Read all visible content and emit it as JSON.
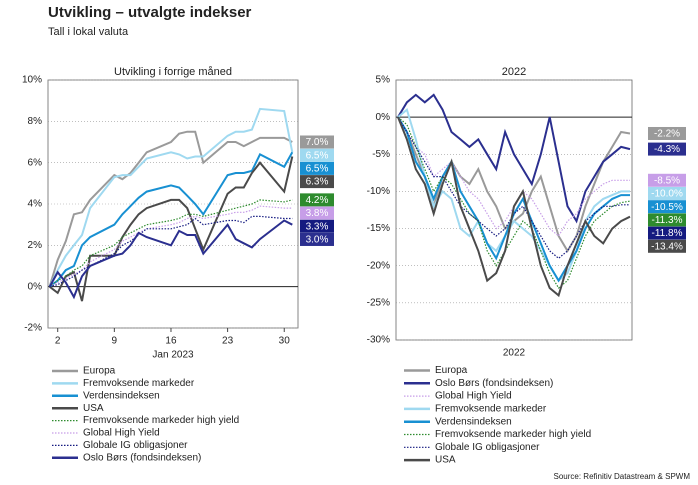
{
  "header": {
    "title": "Utvikling – utvalgte indekser",
    "subtitle": "Tall i lokal valuta"
  },
  "source": "Source: Refinitiv Datastream & SPWM",
  "chart_data": [
    {
      "type": "line",
      "title": "Utvikling i forrige måned",
      "xlabel": "Jan 2023",
      "x": [
        1,
        2,
        3,
        4,
        5,
        6,
        9,
        10,
        11,
        12,
        13,
        16,
        17,
        18,
        19,
        20,
        23,
        24,
        25,
        26,
        27,
        30,
        31
      ],
      "xlim": [
        0.8,
        31.7
      ],
      "xticks": [
        2,
        9,
        16,
        23,
        30
      ],
      "ylim": [
        -2,
        10
      ],
      "yticks": [
        {
          "value": -2,
          "label": "-2%"
        },
        {
          "value": 0,
          "label": "0%"
        },
        {
          "value": 2,
          "label": "2%"
        },
        {
          "value": 4,
          "label": "4%"
        },
        {
          "value": 6,
          "label": "6%"
        },
        {
          "value": 8,
          "label": "8%"
        },
        {
          "value": 10,
          "label": "10%"
        }
      ],
      "grid": true,
      "series": [
        {
          "name": "Europa",
          "color": "#9a9a9a",
          "style": "solid",
          "values": [
            0,
            1.3,
            2.2,
            3.5,
            3.6,
            4.2,
            5.4,
            5.2,
            5.5,
            6.0,
            6.5,
            7.0,
            7.4,
            7.5,
            7.5,
            6.0,
            7.0,
            7.0,
            6.8,
            7.0,
            7.2,
            7.2,
            7.0
          ],
          "value_labels": [
            null,
            null,
            null,
            null,
            null,
            null,
            null,
            null,
            null,
            null,
            null,
            null,
            null,
            null,
            null,
            null,
            null,
            null,
            null,
            null,
            null,
            null,
            "7.0%"
          ]
        },
        {
          "name": "Fremvoksende markeder",
          "color": "#9fd9f0",
          "style": "solid",
          "values": [
            0,
            0.8,
            1.5,
            2.0,
            2.5,
            3.8,
            5.3,
            5.4,
            5.4,
            5.8,
            6.2,
            6.5,
            6.4,
            6.2,
            6.3,
            6.3,
            7.3,
            7.5,
            7.5,
            7.6,
            8.6,
            8.5,
            6.5
          ],
          "value_labels": [
            null,
            null,
            null,
            null,
            null,
            null,
            null,
            null,
            null,
            null,
            null,
            null,
            null,
            null,
            null,
            null,
            null,
            null,
            null,
            null,
            null,
            null,
            "6.5%"
          ]
        },
        {
          "name": "Verdensindeksen",
          "color": "#1890d2",
          "style": "solid",
          "values": [
            0,
            0.3,
            0.8,
            1.0,
            2.0,
            2.4,
            3.0,
            3.5,
            3.9,
            4.3,
            4.6,
            4.9,
            4.8,
            4.4,
            4.0,
            3.5,
            5.4,
            5.5,
            5.5,
            5.6,
            6.4,
            5.8,
            6.5
          ],
          "value_labels": [
            null,
            null,
            null,
            null,
            null,
            null,
            null,
            null,
            null,
            null,
            null,
            null,
            null,
            null,
            null,
            null,
            null,
            null,
            null,
            null,
            null,
            null,
            "6.5%"
          ]
        },
        {
          "name": "USA",
          "color": "#4a4a4a",
          "style": "solid",
          "values": [
            0,
            -0.3,
            0.5,
            0.7,
            -0.7,
            1.5,
            1.5,
            2.4,
            3.0,
            3.5,
            3.8,
            4.2,
            4.2,
            3.8,
            2.8,
            1.8,
            4.5,
            4.8,
            4.8,
            5.5,
            6.0,
            4.6,
            6.3
          ],
          "value_labels": [
            null,
            null,
            null,
            null,
            null,
            null,
            null,
            null,
            null,
            null,
            null,
            null,
            null,
            null,
            null,
            null,
            null,
            null,
            null,
            null,
            null,
            null,
            "6.3%"
          ]
        },
        {
          "name": "Fremvoksende markeder high yield",
          "color": "#2e8b2e",
          "style": "dotted",
          "values": [
            0,
            0.3,
            0.5,
            0.8,
            1.0,
            1.5,
            2.0,
            2.4,
            2.6,
            2.8,
            3.0,
            3.2,
            3.3,
            3.5,
            3.5,
            3.4,
            3.7,
            3.8,
            3.9,
            4.0,
            4.2,
            4.1,
            4.2
          ],
          "value_labels": [
            null,
            null,
            null,
            null,
            null,
            null,
            null,
            null,
            null,
            null,
            null,
            null,
            null,
            null,
            null,
            null,
            null,
            null,
            null,
            null,
            null,
            null,
            "4.2%"
          ]
        },
        {
          "name": "Global High Yield",
          "color": "#c79ee8",
          "style": "dotted",
          "values": [
            0,
            0.2,
            0.4,
            0.6,
            0.8,
            1.2,
            1.8,
            2.2,
            2.4,
            2.6,
            2.8,
            3.0,
            3.1,
            3.3,
            3.4,
            3.3,
            3.5,
            3.6,
            3.6,
            3.7,
            3.9,
            3.8,
            3.8
          ],
          "value_labels": [
            null,
            null,
            null,
            null,
            null,
            null,
            null,
            null,
            null,
            null,
            null,
            null,
            null,
            null,
            null,
            null,
            null,
            null,
            null,
            null,
            null,
            null,
            "3.8%"
          ]
        },
        {
          "name": "Globale IG obligasjoner",
          "color": "#141a80",
          "style": "dotted",
          "values": [
            0,
            0.1,
            0.3,
            0.5,
            0.8,
            1.0,
            1.6,
            2.0,
            2.2,
            2.5,
            2.8,
            2.8,
            2.9,
            3.0,
            3.3,
            3.0,
            3.2,
            3.2,
            3.1,
            3.4,
            3.4,
            3.3,
            3.3
          ],
          "value_labels": [
            null,
            null,
            null,
            null,
            null,
            null,
            null,
            null,
            null,
            null,
            null,
            null,
            null,
            null,
            null,
            null,
            null,
            null,
            null,
            null,
            null,
            null,
            "3.3%"
          ]
        },
        {
          "name": "Oslo Børs (fondsindeksen)",
          "color": "#2b2f8f",
          "style": "solid",
          "values": [
            0,
            0.7,
            0.2,
            -0.5,
            0.5,
            1.0,
            1.5,
            1.6,
            2.0,
            2.6,
            2.4,
            2.0,
            2.7,
            2.5,
            2.5,
            1.6,
            3.0,
            2.3,
            2.1,
            1.9,
            2.3,
            3.2,
            3.0
          ],
          "value_labels": [
            null,
            null,
            null,
            null,
            null,
            null,
            null,
            null,
            null,
            null,
            null,
            null,
            null,
            null,
            null,
            null,
            null,
            null,
            null,
            null,
            null,
            null,
            "3.0%"
          ]
        }
      ]
    },
    {
      "type": "line",
      "title": "2022",
      "xlabel": "2022",
      "categories": [
        null,
        null,
        null,
        null,
        null,
        null,
        null,
        null,
        null,
        null,
        null,
        null,
        null,
        null,
        null,
        null,
        null,
        null,
        null,
        null,
        null,
        null,
        null,
        null,
        null,
        null,
        null
      ],
      "ylim": [
        -30,
        5
      ],
      "yticks": [
        {
          "value": -30,
          "label": "-30%"
        },
        {
          "value": -25,
          "label": "-25%"
        },
        {
          "value": -20,
          "label": "-20%"
        },
        {
          "value": -15,
          "label": "-15%"
        },
        {
          "value": -10,
          "label": "-10%"
        },
        {
          "value": -5,
          "label": "-5%"
        },
        {
          "value": 0,
          "label": "0%"
        },
        {
          "value": 5,
          "label": "5%"
        }
      ],
      "grid": true,
      "series": [
        {
          "name": "Europa",
          "color": "#9a9a9a",
          "style": "solid",
          "values": [
            0,
            -2,
            -5,
            -8,
            -12,
            -8,
            -6,
            -8,
            -9,
            -7,
            -10,
            -12,
            -15,
            -14,
            -13,
            -10,
            -8,
            -12,
            -16,
            -18,
            -16,
            -12,
            -9,
            -6,
            -4,
            -2,
            -2.2
          ],
          "value_labels": [
            null,
            null,
            null,
            null,
            null,
            null,
            null,
            null,
            null,
            null,
            null,
            null,
            null,
            null,
            null,
            null,
            null,
            null,
            null,
            null,
            null,
            null,
            null,
            null,
            null,
            null,
            "-2.2%"
          ]
        },
        {
          "name": "Oslo Børs (fondsindeksen)",
          "color": "#2b2f8f",
          "style": "solid",
          "values": [
            0,
            2,
            3,
            2,
            3,
            1,
            -2,
            -3,
            -4,
            -3,
            -5,
            -7,
            -2,
            -5,
            -7,
            -9,
            -5,
            0,
            -6,
            -12,
            -14,
            -10,
            -8,
            -6,
            -5,
            -4,
            -4.3
          ],
          "value_labels": [
            null,
            null,
            null,
            null,
            null,
            null,
            null,
            null,
            null,
            null,
            null,
            null,
            null,
            null,
            null,
            null,
            null,
            null,
            null,
            null,
            null,
            null,
            null,
            null,
            null,
            null,
            "-4.3%"
          ]
        },
        {
          "name": "Global High Yield",
          "color": "#c79ee8",
          "style": "dotted",
          "values": [
            0,
            -2,
            -4,
            -5,
            -8,
            -7,
            -6,
            -8,
            -10,
            -11,
            -13,
            -15,
            -14,
            -12,
            -10,
            -11,
            -13,
            -15,
            -16,
            -14,
            -13,
            -11,
            -10,
            -9,
            -8.5,
            -8.5,
            -8.5
          ],
          "value_labels": [
            null,
            null,
            null,
            null,
            null,
            null,
            null,
            null,
            null,
            null,
            null,
            null,
            null,
            null,
            null,
            null,
            null,
            null,
            null,
            null,
            null,
            null,
            null,
            null,
            null,
            null,
            "-8.5%"
          ]
        },
        {
          "name": "Fremvoksende markeder",
          "color": "#9fd9f0",
          "style": "solid",
          "values": [
            0,
            1,
            -3,
            -8,
            -12,
            -10,
            -11,
            -15,
            -16,
            -14,
            -17,
            -18,
            -16,
            -14,
            -15,
            -16,
            -18,
            -20,
            -22,
            -21,
            -18,
            -14,
            -12,
            -11,
            -10.5,
            -10,
            -10.0
          ],
          "value_labels": [
            null,
            null,
            null,
            null,
            null,
            null,
            null,
            null,
            null,
            null,
            null,
            null,
            null,
            null,
            null,
            null,
            null,
            null,
            null,
            null,
            null,
            null,
            null,
            null,
            null,
            null,
            "-10.0%"
          ]
        },
        {
          "name": "Verdensindeksen",
          "color": "#1890d2",
          "style": "solid",
          "values": [
            0,
            -2,
            -6,
            -8,
            -11,
            -8,
            -6,
            -10,
            -12,
            -14,
            -17,
            -19,
            -16,
            -13,
            -11,
            -14,
            -17,
            -20,
            -22,
            -20,
            -18,
            -15,
            -13,
            -12,
            -11,
            -10.5,
            -10.5
          ],
          "value_labels": [
            null,
            null,
            null,
            null,
            null,
            null,
            null,
            null,
            null,
            null,
            null,
            null,
            null,
            null,
            null,
            null,
            null,
            null,
            null,
            null,
            null,
            null,
            null,
            null,
            null,
            null,
            "-10.5%"
          ]
        },
        {
          "name": "Fremvoksende markeder high yield",
          "color": "#2e8b2e",
          "style": "dotted",
          "values": [
            0,
            -1,
            -4,
            -7,
            -10,
            -8,
            -9,
            -11,
            -13,
            -14,
            -18,
            -20,
            -18,
            -16,
            -14,
            -15,
            -18,
            -21,
            -23,
            -22,
            -19,
            -16,
            -14,
            -13,
            -12,
            -11.5,
            -11.3
          ],
          "value_labels": [
            null,
            null,
            null,
            null,
            null,
            null,
            null,
            null,
            null,
            null,
            null,
            null,
            null,
            null,
            null,
            null,
            null,
            null,
            null,
            null,
            null,
            null,
            null,
            null,
            null,
            null,
            "-11.3%"
          ]
        },
        {
          "name": "Globale IG obligasjoner",
          "color": "#141a80",
          "style": "dotted",
          "values": [
            0,
            -2,
            -4,
            -6,
            -8,
            -8,
            -10,
            -12,
            -13,
            -14,
            -15,
            -16,
            -15,
            -13,
            -12,
            -14,
            -16,
            -18,
            -19,
            -18,
            -16,
            -14,
            -13,
            -12,
            -12,
            -11.8,
            -11.8
          ],
          "value_labels": [
            null,
            null,
            null,
            null,
            null,
            null,
            null,
            null,
            null,
            null,
            null,
            null,
            null,
            null,
            null,
            null,
            null,
            null,
            null,
            null,
            null,
            null,
            null,
            null,
            null,
            null,
            "-11.8%"
          ]
        },
        {
          "name": "USA",
          "color": "#4a4a4a",
          "style": "solid",
          "values": [
            0,
            -3,
            -7,
            -9,
            -13,
            -9,
            -6,
            -12,
            -15,
            -18,
            -22,
            -21,
            -18,
            -12,
            -10,
            -15,
            -20,
            -23,
            -24,
            -20,
            -17,
            -14,
            -16,
            -17,
            -15,
            -14,
            -13.4
          ],
          "value_labels": [
            null,
            null,
            null,
            null,
            null,
            null,
            null,
            null,
            null,
            null,
            null,
            null,
            null,
            null,
            null,
            null,
            null,
            null,
            null,
            null,
            null,
            null,
            null,
            null,
            null,
            null,
            "-13.4%"
          ]
        }
      ]
    }
  ]
}
